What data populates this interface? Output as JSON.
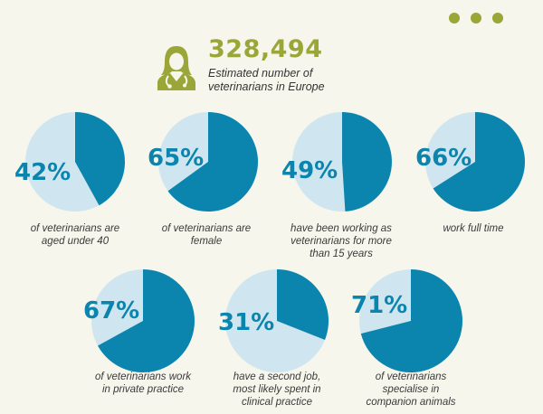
{
  "colors": {
    "background": "#f6f6ec",
    "olive": "#9aa638",
    "pie_main": "#0b85ae",
    "pie_light": "#cfe6f0",
    "pct_text": "#0b85ae"
  },
  "header": {
    "icon": "veterinarian-icon",
    "value": "328,494",
    "caption": "Estimated number of\nveterinarians in Europe"
  },
  "decoration": {
    "dots_icon": "more-dots-icon"
  },
  "chart_data": {
    "type": "pie",
    "title": "",
    "items": [
      {
        "value": 42,
        "label": "42%",
        "caption": "of veterinarians are\naged under 40"
      },
      {
        "value": 65,
        "label": "65%",
        "caption": "of veterinarians are\nfemale"
      },
      {
        "value": 49,
        "label": "49%",
        "caption": "have been working as\nveterinarians for more\nthan 15 years"
      },
      {
        "value": 66,
        "label": "66%",
        "caption": "work full time"
      },
      {
        "value": 67,
        "label": "67%",
        "caption": "of veterinarians work\nin private practice"
      },
      {
        "value": 31,
        "label": "31%",
        "caption": "have a second job,\nmost likely spent in\nclinical practice"
      },
      {
        "value": 71,
        "label": "71%",
        "caption": "of veterinarians\nspecialise in\ncompanion animals"
      }
    ]
  }
}
